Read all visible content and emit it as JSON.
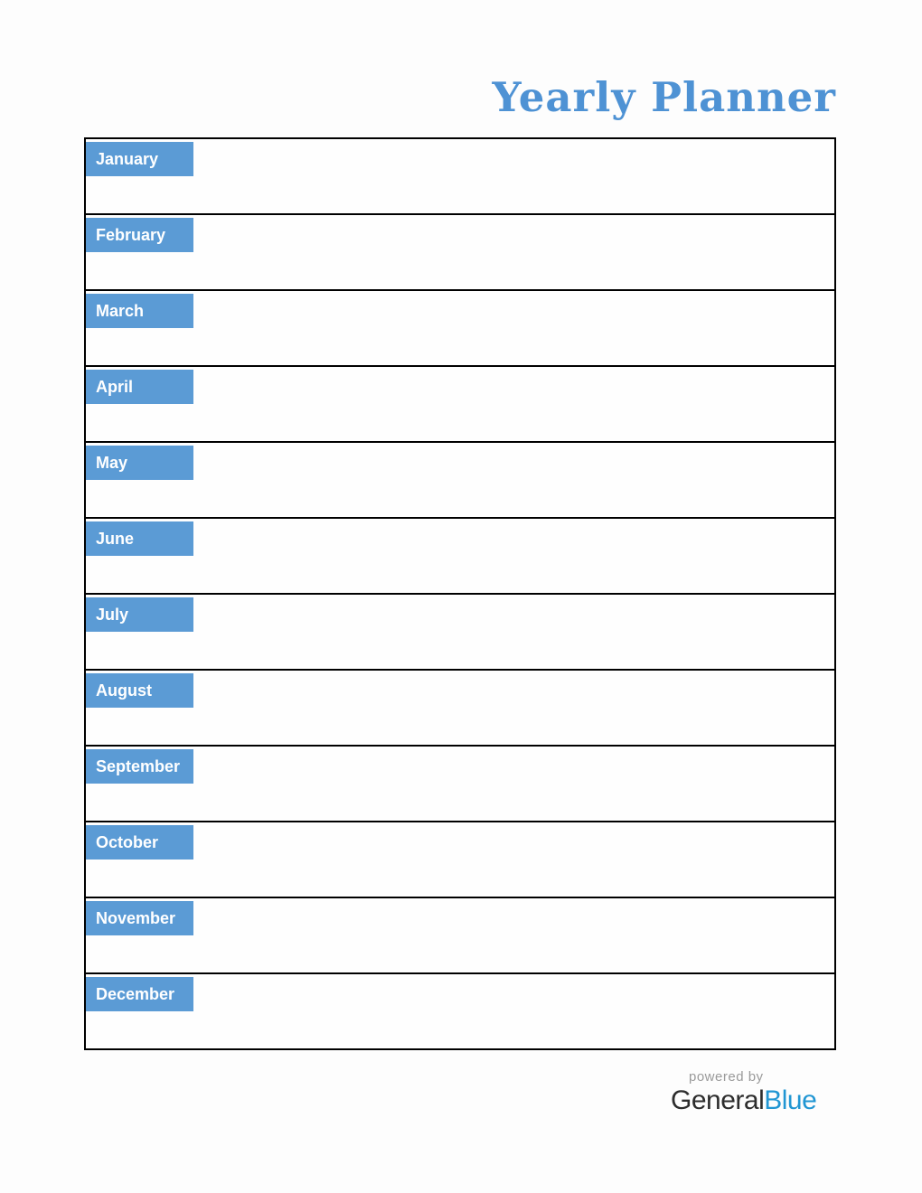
{
  "title": "Yearly Planner",
  "months": [
    "January",
    "February",
    "March",
    "April",
    "May",
    "June",
    "July",
    "August",
    "September",
    "October",
    "November",
    "December"
  ],
  "footer": {
    "powered_by": "powered by",
    "brand_general": "General",
    "brand_blue": "Blue"
  },
  "colors": {
    "title_blue": "#4E92D4",
    "month_label_blue": "#5B9BD5",
    "month_label_text": "#FFFFFF",
    "table_border": "#000000",
    "powered_by_gray": "#9A9A9A",
    "brand_dark": "#2D2D2D",
    "brand_blue": "#2196D3"
  }
}
